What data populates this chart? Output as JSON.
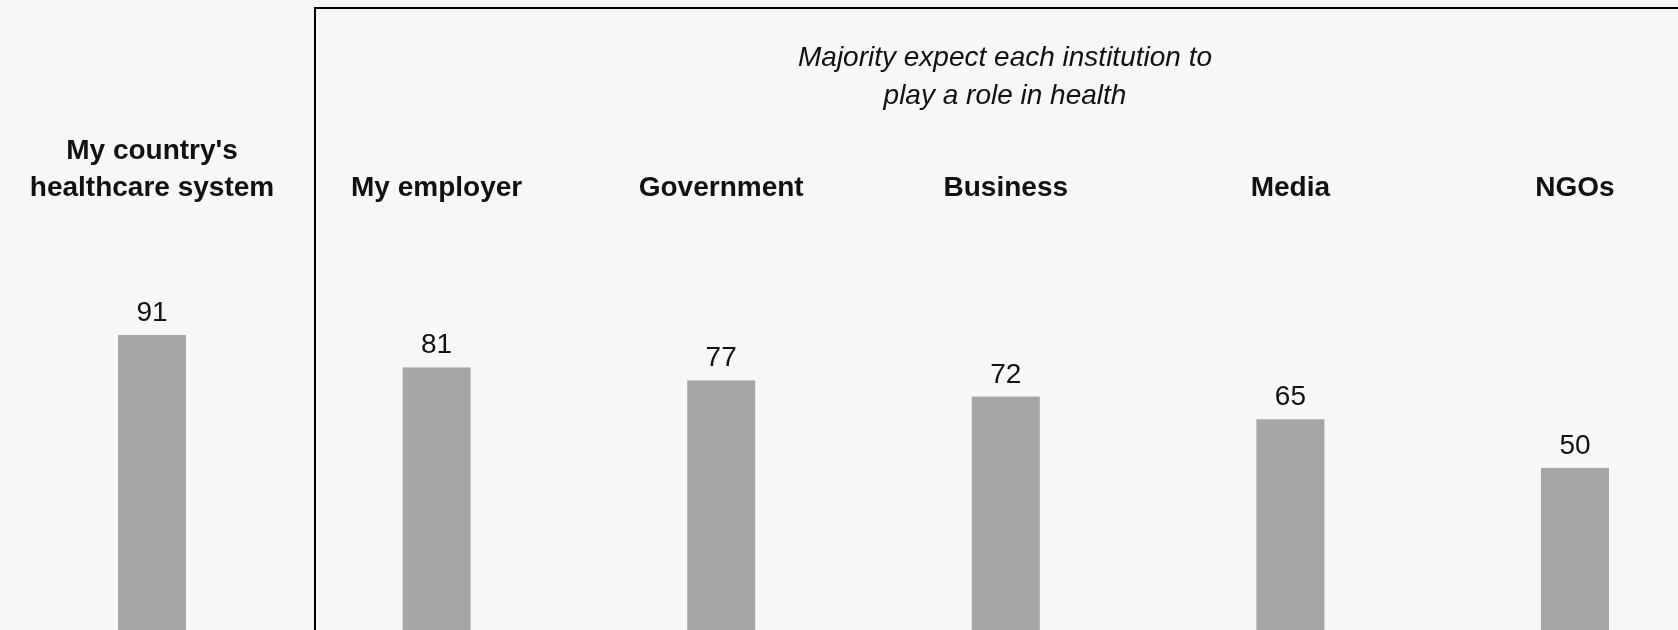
{
  "chart_data": {
    "type": "bar",
    "categories": [
      "My country's healthcare system",
      "My employer",
      "Government",
      "Business",
      "Media",
      "NGOs"
    ],
    "values": [
      91,
      81,
      77,
      72,
      65,
      50
    ],
    "color": "#a6a6a6",
    "data_labels": true,
    "tick_labels": "x",
    "annotations": [
      "Majority expect each institution to play a role in health"
    ]
  }
}
